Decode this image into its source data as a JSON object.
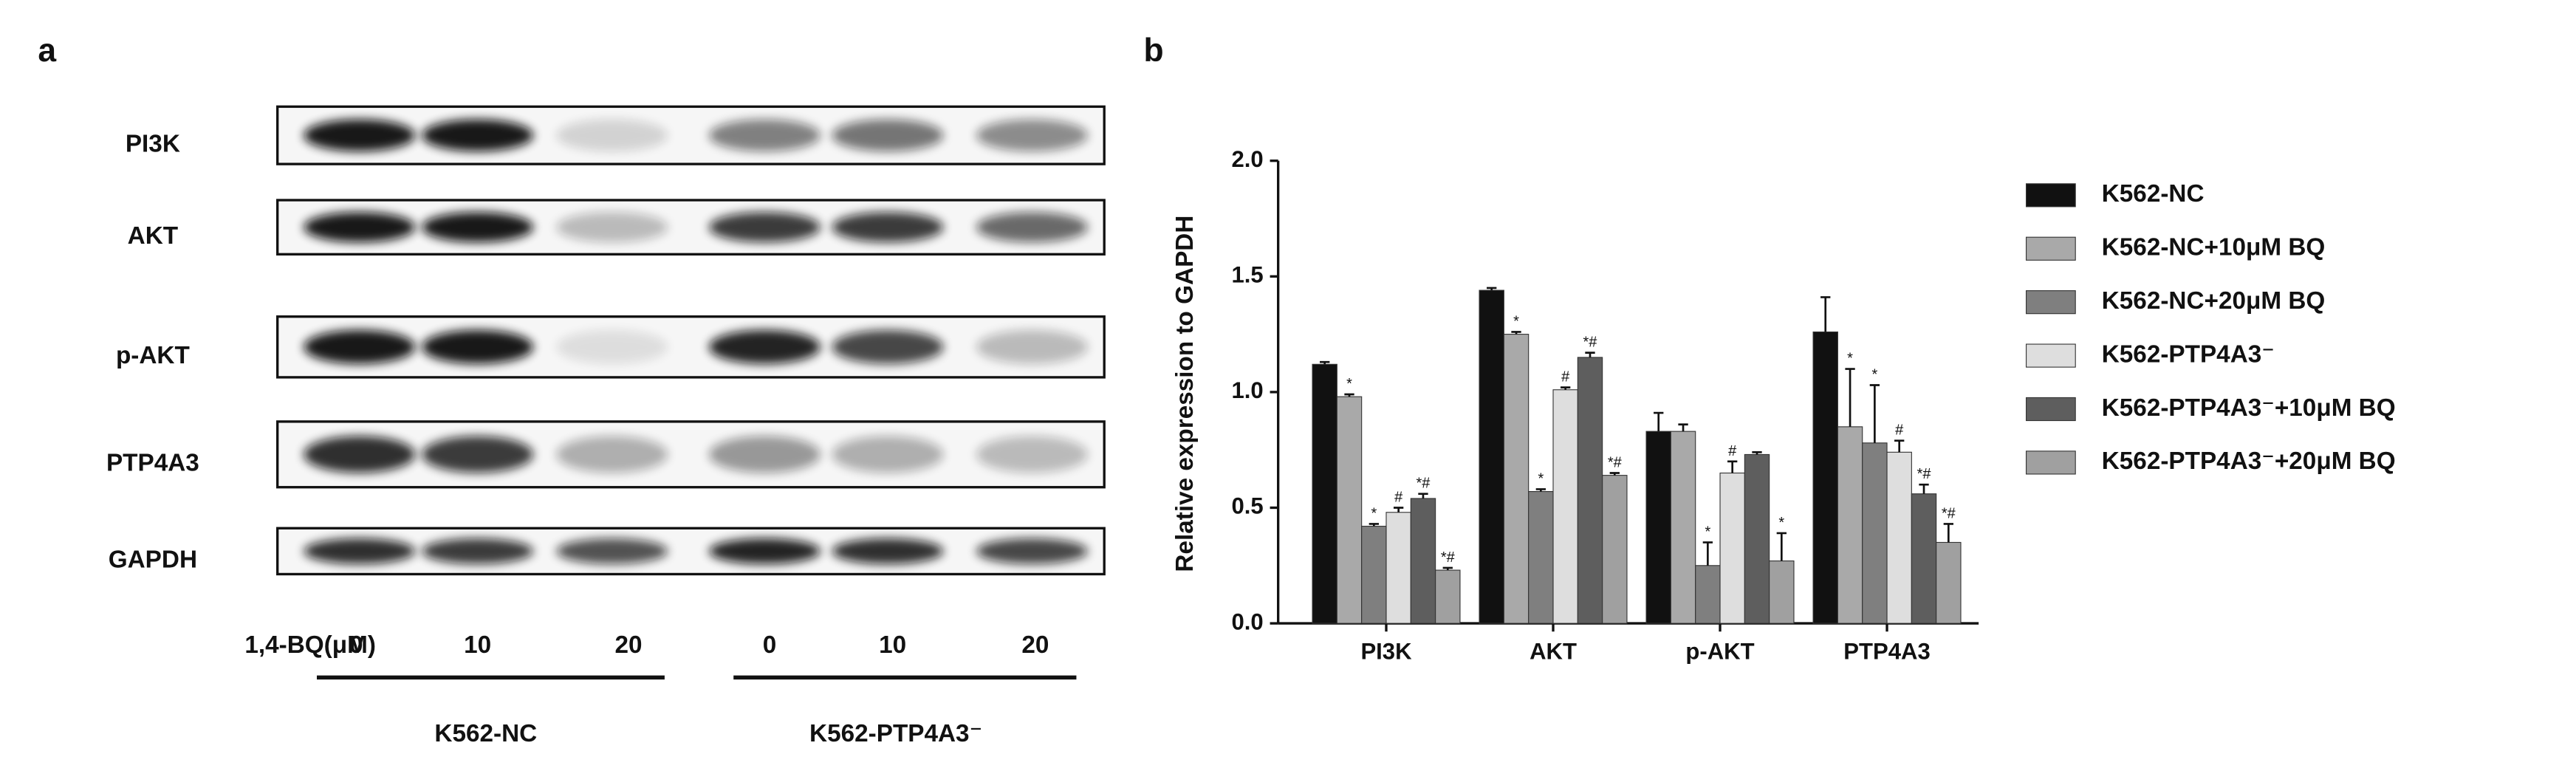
{
  "panel_a": {
    "label": "a",
    "rows": [
      "PI3K",
      "AKT",
      "p-AKT",
      "PTP4A3",
      "GAPDH"
    ],
    "dose_label": "1,4-BQ(μM)",
    "doses": [
      "0",
      "10",
      "20",
      "0",
      "10",
      "20"
    ],
    "groups": [
      "K562-NC",
      "K562-PTP4A3⁻"
    ]
  },
  "chart_data": {
    "type": "bar",
    "panel_label": "b",
    "y_label": "Relative expression to GAPDH",
    "categories": [
      "PI3K",
      "AKT",
      "p-AKT",
      "PTP4A3"
    ],
    "ylim": [
      0,
      2
    ],
    "yticks": [
      {
        "value": 0,
        "label": "0.0"
      },
      {
        "value": 0.5,
        "label": "0.5"
      },
      {
        "value": 1,
        "label": "1.0"
      },
      {
        "value": 1.5,
        "label": "1.5"
      },
      {
        "value": 2,
        "label": "2.0"
      }
    ],
    "legend": "right",
    "series": [
      {
        "name": "K562-NC",
        "color": "#111111",
        "values": [
          1.12,
          1.44,
          0.83,
          1.26
        ],
        "errors": [
          0.01,
          0.01,
          0.08,
          0.15
        ],
        "annotations": [
          null,
          null,
          null,
          null
        ]
      },
      {
        "name": "K562-NC+10μM BQ",
        "color": "#a9a9a9",
        "values": [
          0.98,
          1.25,
          0.83,
          0.85
        ],
        "errors": [
          0.01,
          0.01,
          0.03,
          0.25
        ],
        "annotations": [
          "*",
          "*",
          null,
          "*"
        ]
      },
      {
        "name": "K562-NC+20μM BQ",
        "color": "#7f7f7f",
        "values": [
          0.42,
          0.57,
          0.25,
          0.78
        ],
        "errors": [
          0.01,
          0.01,
          0.1,
          0.25
        ],
        "annotations": [
          "*",
          "*",
          "*",
          "*"
        ]
      },
      {
        "name": "K562-PTP4A3⁻",
        "color": "#dedede",
        "values": [
          0.48,
          1.01,
          0.65,
          0.74
        ],
        "errors": [
          0.02,
          0.01,
          0.05,
          0.05
        ],
        "annotations": [
          "#",
          "#",
          "#",
          "#"
        ]
      },
      {
        "name": "K562-PTP4A3⁻+10μM BQ",
        "color": "#5e5e5e",
        "values": [
          0.54,
          1.15,
          0.73,
          0.56
        ],
        "errors": [
          0.02,
          0.02,
          0.01,
          0.04
        ],
        "annotations": [
          "*#",
          "*#",
          null,
          "*#"
        ]
      },
      {
        "name": "K562-PTP4A3⁻+20μM BQ",
        "color": "#a0a0a0",
        "values": [
          0.23,
          0.64,
          0.27,
          0.35
        ],
        "errors": [
          0.01,
          0.01,
          0.12,
          0.08
        ],
        "annotations": [
          "*#",
          "*#",
          "*",
          "*#"
        ]
      }
    ]
  }
}
